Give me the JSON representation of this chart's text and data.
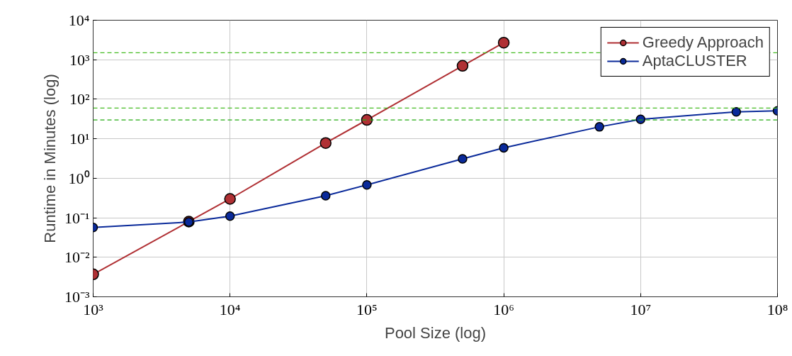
{
  "chart_data": {
    "type": "line",
    "xlabel": "Pool Size (log)",
    "ylabel": "Runtime in Minutes (log)",
    "log": "xy",
    "grid": true,
    "legend": "top right",
    "marker": "circle",
    "line_style": "solid",
    "xlim": [
      1000,
      100000000
    ],
    "ylim": [
      0.001,
      10000
    ],
    "xticks": [
      {
        "value": 1000,
        "label": "10³"
      },
      {
        "value": 10000,
        "label": "10⁴"
      },
      {
        "value": 100000,
        "label": "10⁵"
      },
      {
        "value": 1000000,
        "label": "10⁶"
      },
      {
        "value": 10000000,
        "label": "10⁷"
      },
      {
        "value": 100000000,
        "label": "10⁸"
      }
    ],
    "yticks": [
      {
        "value": 0.001,
        "label": "10⁻³"
      },
      {
        "value": 0.01,
        "label": "10⁻²"
      },
      {
        "value": 0.1,
        "label": "10⁻¹"
      },
      {
        "value": 1,
        "label": "10⁰"
      },
      {
        "value": 10,
        "label": "10¹"
      },
      {
        "value": 100,
        "label": "10²"
      },
      {
        "value": 1000,
        "label": "10³"
      },
      {
        "value": 10000,
        "label": "10⁴"
      }
    ],
    "series": [
      {
        "name": "Greedy Approach",
        "color": "#b03034",
        "x": [
          1000,
          5000,
          10000,
          50000,
          100000,
          500000,
          1000000
        ],
        "values": [
          0.0037,
          0.08,
          0.3,
          7.8,
          30,
          700,
          2700
        ]
      },
      {
        "name": "AptaCLUSTER",
        "color": "#0a2a9a",
        "x": [
          1000,
          5000,
          10000,
          50000,
          100000,
          500000,
          1000000,
          5000000,
          10000000,
          50000000,
          100000000
        ],
        "values": [
          0.057,
          0.078,
          0.11,
          0.36,
          0.68,
          3.1,
          5.9,
          20,
          31,
          48,
          51
        ]
      }
    ],
    "ref_lines": [
      {
        "axis": "y",
        "value": 1500,
        "color": "#44bb22",
        "line_style": "dashed"
      },
      {
        "axis": "y",
        "value": 60,
        "color": "#44bb22",
        "line_style": "dashed"
      },
      {
        "axis": "y",
        "value": 30,
        "color": "#22aa11",
        "line_style": "dashed"
      }
    ]
  }
}
